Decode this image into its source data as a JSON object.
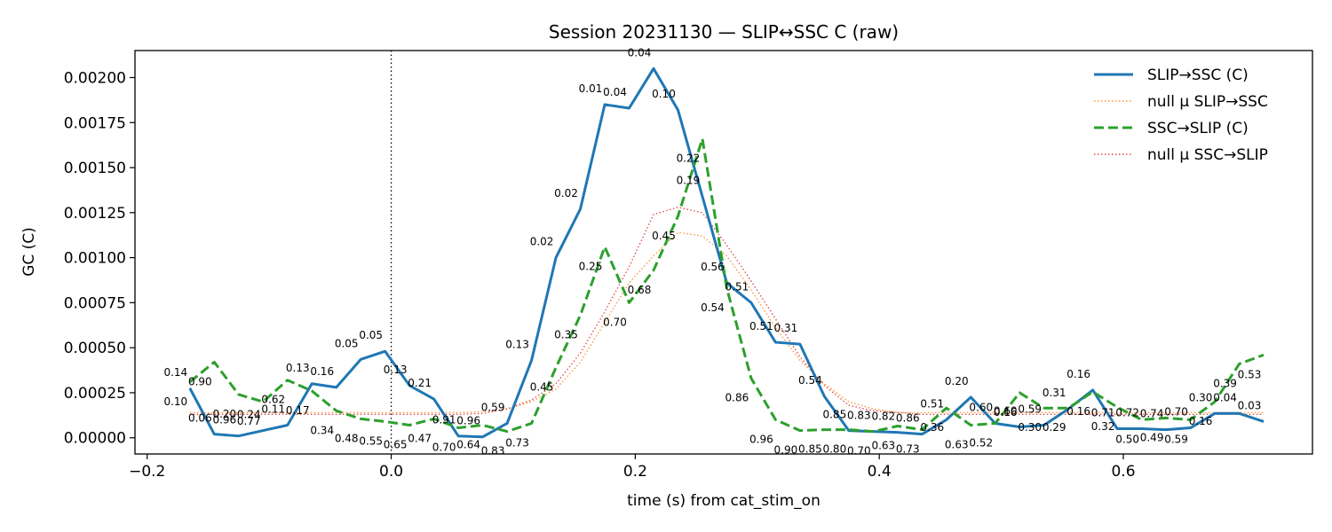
{
  "chart_data": {
    "type": "line",
    "title": "Session 20231130 — SLIP↔SSC C (raw)",
    "xlabel": "time (s) from cat_stim_on",
    "ylabel": "GC (C)",
    "xlim": [
      -0.21,
      0.755
    ],
    "ylim": [
      -9e-05,
      0.00215
    ],
    "xticks": [
      -0.2,
      0.0,
      0.2,
      0.4,
      0.6
    ],
    "xtick_labels": [
      "−0.2",
      "0.0",
      "0.2",
      "0.4",
      "0.6"
    ],
    "yticks": [
      0,
      0.00025,
      0.0005,
      0.00075,
      0.001,
      0.00125,
      0.0015,
      0.00175,
      0.002
    ],
    "ytick_labels": [
      "0.00000",
      "0.00025",
      "0.00050",
      "0.00075",
      "0.00100",
      "0.00125",
      "0.00150",
      "0.00175",
      "0.00200"
    ],
    "vline_x": 0.0,
    "grid": false,
    "legend_position": "top-right",
    "x": [
      -0.165,
      -0.145,
      -0.125,
      -0.105,
      -0.085,
      -0.065,
      -0.045,
      -0.025,
      -0.005,
      0.015,
      0.035,
      0.055,
      0.075,
      0.095,
      0.115,
      0.135,
      0.155,
      0.175,
      0.195,
      0.215,
      0.235,
      0.255,
      0.275,
      0.295,
      0.315,
      0.335,
      0.355,
      0.375,
      0.395,
      0.415,
      0.435,
      0.455,
      0.475,
      0.495,
      0.515,
      0.535,
      0.555,
      0.575,
      0.595,
      0.615,
      0.635,
      0.655,
      0.675,
      0.695,
      0.715
    ],
    "series": [
      {
        "name": "SLIP→SSC (C)",
        "color": "#1f77b4",
        "style": "solid",
        "values": [
          0.000275,
          2e-05,
          1e-05,
          4e-05,
          7e-05,
          0.0003,
          0.00028,
          0.000435,
          0.00048,
          0.00029,
          0.000215,
          1e-05,
          5e-06,
          8e-05,
          0.00043,
          0.001,
          0.00127,
          0.00185,
          0.00183,
          0.00205,
          0.00182,
          0.00134,
          0.00086,
          0.00075,
          0.00053,
          0.00052,
          0.00023,
          4e-05,
          3.5e-05,
          3e-05,
          2e-05,
          0.0001,
          0.000225,
          8e-05,
          6e-05,
          7e-05,
          0.00016,
          0.000265,
          5e-05,
          5e-05,
          4.5e-05,
          5.5e-05,
          0.000135,
          0.000135,
          9e-05
        ],
        "pvals": [
          "0.14",
          "0.06",
          "0.96",
          "0.24",
          "0.11",
          "0.13",
          "0.16",
          "0.05",
          "0.05",
          "0.13",
          "0.21",
          "0.91",
          "0.96",
          "0.59",
          "0.13",
          "0.02",
          "0.02",
          "0.01",
          "0.04",
          "0.04",
          "0.10",
          "0.19",
          "0.56",
          "0.51",
          "0.51",
          "0.31",
          "0.54",
          "0.85",
          "0.83",
          "0.82",
          "0.86",
          "0.51",
          "0.20",
          "0.60",
          "0.60",
          "0.59",
          "0.31",
          "0.16",
          "0.71",
          "0.72",
          "0.74",
          "0.70",
          "0.30",
          "0.04",
          "0.03"
        ]
      },
      {
        "name": "null μ SLIP→SSC",
        "color": "#ff7f0e",
        "style": "dotted",
        "values": [
          0.00014,
          0.00014,
          0.00014,
          0.00014,
          0.00014,
          0.00014,
          0.00014,
          0.00014,
          0.00014,
          0.00014,
          0.00014,
          0.00014,
          0.000145,
          0.00016,
          0.0002,
          0.00027,
          0.00042,
          0.00064,
          0.00086,
          0.00101,
          0.00114,
          0.00112,
          0.00101,
          0.00082,
          0.00061,
          0.00043,
          0.0003,
          0.0002,
          0.00016,
          0.00014,
          0.00014,
          0.00014,
          0.00014,
          0.00014,
          0.00014,
          0.00014,
          0.00014,
          0.00014,
          0.00014,
          0.00014,
          0.00014,
          0.00014,
          0.00014,
          0.00014,
          0.00014
        ]
      },
      {
        "name": "SSC→SLIP (C)",
        "color": "#2ca02c",
        "style": "dashed",
        "values": [
          0.00031,
          0.00042,
          0.00024,
          0.0002,
          0.00032,
          0.00026,
          0.00015,
          0.000105,
          9e-05,
          7e-05,
          0.000105,
          5.5e-05,
          7e-05,
          3.5e-05,
          8e-05,
          0.00039,
          0.00068,
          0.00106,
          0.00075,
          0.00093,
          0.00123,
          0.00166,
          0.00083,
          0.00033,
          0.0001,
          4e-05,
          4.5e-05,
          4.5e-05,
          3.5e-05,
          6.5e-05,
          4.5e-05,
          0.000165,
          7e-05,
          8e-05,
          0.00025,
          0.000165,
          0.000165,
          0.000255,
          0.00017,
          0.0001,
          0.00011,
          0.0001,
          0.0002,
          0.00041,
          0.00046
        ]
      },
      {
        "name": "null μ SSC→SLIP",
        "color": "#d62728",
        "style": "dotted",
        "values": [
          0.00013,
          0.00013,
          0.00013,
          0.00013,
          0.00013,
          0.00013,
          0.00013,
          0.00013,
          0.00013,
          0.00013,
          0.00013,
          0.00013,
          0.000135,
          0.00016,
          0.00021,
          0.0003,
          0.00047,
          0.0007,
          0.00095,
          0.00124,
          0.00128,
          0.00125,
          0.00107,
          0.00087,
          0.00066,
          0.00045,
          0.00029,
          0.00018,
          0.00015,
          0.00014,
          0.00013,
          0.00013,
          0.00013,
          0.00013,
          0.00013,
          0.00013,
          0.00013,
          0.00013,
          0.00013,
          0.00013,
          0.00013,
          0.00013,
          0.00013,
          0.00013,
          0.00013
        ]
      }
    ],
    "lower_pvals": [
      "0.10",
      "0.90",
      "0.20",
      "0.77",
      "0.62",
      "0.17",
      "0.34",
      "0.48",
      "0.55",
      "0.65",
      "0.47",
      "0.70",
      "0.64",
      "0.83",
      "0.73",
      "0.45",
      "0.35",
      "0.25",
      "0.70",
      "0.68",
      "0.45",
      "0.22",
      "0.54",
      "0.86",
      "0.96",
      "0.90",
      "0.85",
      "0.80",
      "0.70",
      "0.63",
      "0.73",
      "0.36",
      "0.63",
      "0.52",
      "0.16",
      "0.30",
      "0.29",
      "0.16",
      "0.32",
      "0.50",
      "0.49",
      "0.59",
      "0.16",
      "0.39",
      "0.53"
    ]
  }
}
